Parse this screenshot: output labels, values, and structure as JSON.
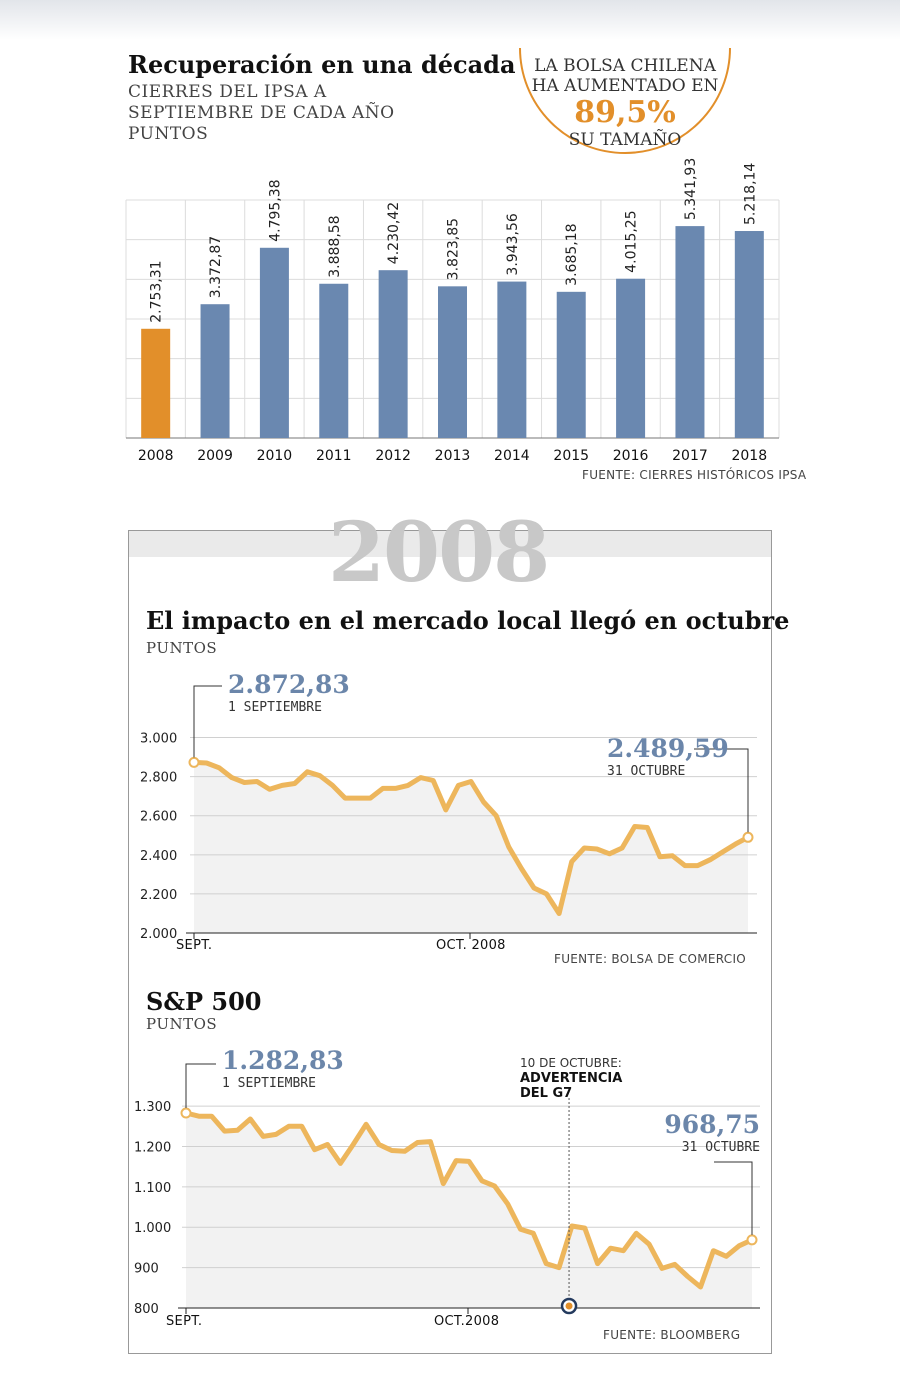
{
  "colors": {
    "highlight_bar": "#e28f2a",
    "bar": "#6a88b0",
    "line": "#edb65c",
    "value_label": "#6b86aa",
    "area": "#f2f2f2"
  },
  "section1": {
    "title": "Recuperación en una década",
    "caption_lines": [
      "CIERRES DEL IPSA A",
      "SEPTIEMBRE DE CADA AÑO",
      "PUNTOS"
    ],
    "source": "FUENTE: CIERRES HISTÓRICOS IPSA"
  },
  "badge": {
    "line1": "LA BOLSA CHILENA",
    "line2": "HA AUMENTADO EN",
    "value": "89,5%",
    "line3": "SU TAMAÑO"
  },
  "section2": {
    "year": "2008",
    "title": "El impacto en el mercado local llegó en octubre",
    "unit": "PUNTOS",
    "start_value": "2.872,83",
    "start_date": "1 SEPTIEMBRE",
    "end_value": "2.489,59",
    "end_date": "31 OCTUBRE",
    "x_tick_start": "SEPT.",
    "x_tick_mid": "OCT. 2008",
    "source": "FUENTE: BOLSA DE COMERCIO"
  },
  "section3": {
    "title": "S&P 500",
    "unit": "PUNTOS",
    "start_value": "1.282,83",
    "start_date": "1 SEPTIEMBRE",
    "end_value": "968,75",
    "end_date": "31 OCTUBRE",
    "event_date": "10 DE OCTUBRE:",
    "event_line1": "ADVERTENCIA",
    "event_line2": "DEL G7",
    "x_tick_start": "SEPT.",
    "x_tick_mid": "OCT.2008",
    "source": "FUENTE: BLOOMBERG"
  },
  "chart_data": [
    {
      "type": "bar",
      "categories": [
        "2008",
        "2009",
        "2010",
        "2011",
        "2012",
        "2013",
        "2014",
        "2015",
        "2016",
        "2017",
        "2018"
      ],
      "values": [
        2753.31,
        3372.87,
        4795.38,
        3888.58,
        4230.42,
        3823.85,
        3943.56,
        3685.18,
        4015.25,
        5341.93,
        5218.14
      ],
      "value_labels": [
        "2.753,31",
        "3.372,87",
        "4.795,38",
        "3.888,58",
        "4.230,42",
        "3.823,85",
        "3.943,56",
        "3.685,18",
        "4.015,25",
        "5.341,93",
        "5.218,14"
      ],
      "ylim": [
        0,
        6000
      ],
      "grid": true,
      "highlight_index": 0
    },
    {
      "type": "area",
      "values": [
        2872.83,
        2870,
        2845,
        2795,
        2770,
        2775,
        2735,
        2755,
        2765,
        2825,
        2805,
        2755,
        2690,
        2690,
        2690,
        2740,
        2740,
        2755,
        2795,
        2780,
        2630,
        2755,
        2775,
        2670,
        2600,
        2440,
        2330,
        2230,
        2200,
        2100,
        2365,
        2435,
        2430,
        2405,
        2435,
        2545,
        2540,
        2390,
        2395,
        2345,
        2345,
        2375,
        2415,
        2455,
        2489.59
      ],
      "yticks": [
        2000,
        2200,
        2400,
        2600,
        2800,
        3000
      ],
      "ytick_labels": [
        "2.000",
        "2.200",
        "2.400",
        "2.600",
        "2.800",
        "3.000"
      ],
      "ylim": [
        2000,
        3100
      ],
      "xtick_labels": [
        "SEPT.",
        "OCT. 2008"
      ]
    },
    {
      "type": "area",
      "values": [
        1282.83,
        1275,
        1275,
        1238,
        1240,
        1268,
        1225,
        1230,
        1250,
        1250,
        1192,
        1205,
        1158,
        1205,
        1255,
        1205,
        1190,
        1188,
        1210,
        1212,
        1108,
        1165,
        1163,
        1115,
        1102,
        1058,
        995,
        985,
        910,
        900,
        1003,
        998,
        910,
        948,
        942,
        985,
        958,
        898,
        908,
        878,
        852,
        942,
        928,
        954,
        968.75
      ],
      "yticks": [
        800,
        900,
        1000,
        1100,
        1200,
        1300
      ],
      "ytick_labels": [
        "800",
        "900",
        "1.000",
        "1.100",
        "1.200",
        "1.300"
      ],
      "ylim": [
        800,
        1330
      ],
      "xtick_labels": [
        "SEPT.",
        "OCT.2008"
      ],
      "event_index": 29
    }
  ]
}
